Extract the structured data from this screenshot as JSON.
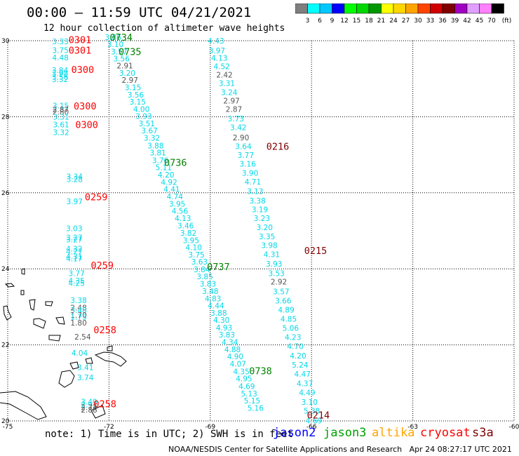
{
  "title": {
    "time_range": "00:00 – 11:59 UTC",
    "date": "04/21/2021"
  },
  "subtitle": "12 hour collection of altimeter wave heights",
  "legend": {
    "unit": "(ft)",
    "labels": [
      "3",
      "6",
      "9",
      "12",
      "15",
      "18",
      "21",
      "24",
      "27",
      "30",
      "33",
      "36",
      "39",
      "42",
      "45",
      "70"
    ],
    "colors": [
      "#7f7f7f",
      "#00ffff",
      "#00c8ff",
      "#0000ff",
      "#00ff00",
      "#00d800",
      "#009800",
      "#ffff00",
      "#ffd700",
      "#ffa500",
      "#ff4500",
      "#d00000",
      "#800000",
      "#a000c0",
      "#e0a0ff",
      "#ff80ff",
      "#000000"
    ]
  },
  "axes": {
    "lat_labels": [
      "30",
      "28",
      "26",
      "24",
      "22",
      "20"
    ],
    "lon_labels": [
      "-75",
      "-72",
      "-69",
      "-66",
      "-63",
      "-60"
    ]
  },
  "satellites": [
    {
      "name": "jason2",
      "color": "#0000ff"
    },
    {
      "name": "jason3",
      "color": "#00a000"
    },
    {
      "name": "altika",
      "color": "#ffa500"
    },
    {
      "name": "cryosat",
      "color": "#ff0000"
    },
    {
      "name": "s3a",
      "color": "#800000"
    }
  ],
  "note": "note: 1) Time is in UTC; 2) SWH is in feet",
  "credit": "NOAA/NESDIS Center for Satellite Applications and Research   Apr 24 08:27:17 UTC 2021",
  "colors": {
    "cyan": "#00d8e8",
    "gray": "#555555",
    "cryosat": "#ff0000",
    "jason3": "#008000",
    "s3a": "#800000"
  },
  "time_labels": [
    {
      "text": "0301",
      "lon": -72.86,
      "lat": 29.94,
      "sat": "cryosat"
    },
    {
      "text": "0301",
      "lon": -72.86,
      "lat": 29.66,
      "sat": "cryosat"
    },
    {
      "text": "0300",
      "lon": -72.78,
      "lat": 29.15,
      "sat": "cryosat"
    },
    {
      "text": "0300",
      "lon": -72.71,
      "lat": 28.19,
      "sat": "cryosat"
    },
    {
      "text": "0300",
      "lon": -72.66,
      "lat": 27.7,
      "sat": "cryosat"
    },
    {
      "text": "0259",
      "lon": -72.38,
      "lat": 25.8,
      "sat": "cryosat"
    },
    {
      "text": "0259",
      "lon": -72.2,
      "lat": 24.0,
      "sat": "cryosat"
    },
    {
      "text": "0258",
      "lon": -72.12,
      "lat": 22.31,
      "sat": "cryosat"
    },
    {
      "text": "0258",
      "lon": -72.12,
      "lat": 20.36,
      "sat": "cryosat"
    },
    {
      "text": "0734",
      "lon": -71.64,
      "lat": 30.0,
      "sat": "jason3"
    },
    {
      "text": "0735",
      "lon": -71.38,
      "lat": 29.62,
      "sat": "jason3"
    },
    {
      "text": "0736",
      "lon": -70.03,
      "lat": 26.71,
      "sat": "jason3"
    },
    {
      "text": "0737",
      "lon": -68.76,
      "lat": 23.97,
      "sat": "jason3"
    },
    {
      "text": "0738",
      "lon": -67.51,
      "lat": 21.23,
      "sat": "jason3"
    },
    {
      "text": "0216",
      "lon": -67.0,
      "lat": 27.13,
      "sat": "s3a"
    },
    {
      "text": "0215",
      "lon": -65.88,
      "lat": 24.39,
      "sat": "s3a"
    },
    {
      "text": "0214",
      "lon": -65.8,
      "lat": 20.06,
      "sat": "s3a"
    }
  ],
  "observations": [
    {
      "v": "3.33",
      "lon": -73.44,
      "lat": 29.91,
      "c": "cyan"
    },
    {
      "v": "3.75",
      "lon": -73.44,
      "lat": 29.68,
      "c": "cyan"
    },
    {
      "v": "4.48",
      "lon": -73.44,
      "lat": 29.48,
      "c": "cyan"
    },
    {
      "v": "3.84",
      "lon": -73.45,
      "lat": 29.15,
      "c": "cyan"
    },
    {
      "v": "3.98",
      "lon": -73.45,
      "lat": 29.07,
      "c": "cyan"
    },
    {
      "v": "3.56",
      "lon": -73.45,
      "lat": 28.98,
      "c": "cyan"
    },
    {
      "v": "3.32",
      "lon": -73.45,
      "lat": 28.91,
      "c": "cyan"
    },
    {
      "v": "3.15",
      "lon": -73.43,
      "lat": 28.22,
      "c": "cyan"
    },
    {
      "v": "2.87",
      "lon": -73.43,
      "lat": 28.12,
      "c": "gray"
    },
    {
      "v": "2.80",
      "lon": -73.43,
      "lat": 28.05,
      "c": "gray"
    },
    {
      "v": "3.31",
      "lon": -73.42,
      "lat": 27.92,
      "c": "cyan"
    },
    {
      "v": "3.61",
      "lon": -73.42,
      "lat": 27.72,
      "c": "cyan"
    },
    {
      "v": "3.32",
      "lon": -73.42,
      "lat": 27.52,
      "c": "cyan"
    },
    {
      "v": "3.34",
      "lon": -73.02,
      "lat": 26.36,
      "c": "cyan"
    },
    {
      "v": "3.28",
      "lon": -73.02,
      "lat": 26.28,
      "c": "cyan"
    },
    {
      "v": "3.97",
      "lon": -73.02,
      "lat": 25.7,
      "c": "cyan"
    },
    {
      "v": "3.03",
      "lon": -73.03,
      "lat": 24.99,
      "c": "cyan"
    },
    {
      "v": "3.27",
      "lon": -73.03,
      "lat": 24.75,
      "c": "cyan"
    },
    {
      "v": "3.27",
      "lon": -73.03,
      "lat": 24.7,
      "c": "cyan"
    },
    {
      "v": "4.32",
      "lon": -73.03,
      "lat": 24.46,
      "c": "cyan"
    },
    {
      "v": "4.27",
      "lon": -73.03,
      "lat": 24.38,
      "c": "cyan"
    },
    {
      "v": "4.31",
      "lon": -73.03,
      "lat": 24.25,
      "c": "cyan"
    },
    {
      "v": "4.17",
      "lon": -73.03,
      "lat": 24.2,
      "c": "cyan"
    },
    {
      "v": "3.77",
      "lon": -72.96,
      "lat": 23.81,
      "c": "cyan"
    },
    {
      "v": "4.35",
      "lon": -72.96,
      "lat": 23.62,
      "c": "cyan"
    },
    {
      "v": "4.25",
      "lon": -72.96,
      "lat": 23.55,
      "c": "cyan"
    },
    {
      "v": "3.38",
      "lon": -72.9,
      "lat": 23.1,
      "c": "cyan"
    },
    {
      "v": "2.48",
      "lon": -72.9,
      "lat": 22.91,
      "c": "gray"
    },
    {
      "v": "3.48",
      "lon": -72.9,
      "lat": 22.84,
      "c": "cyan"
    },
    {
      "v": "1.70",
      "lon": -72.9,
      "lat": 22.71,
      "c": "gray"
    },
    {
      "v": "1.75",
      "lon": -72.9,
      "lat": 22.67,
      "c": "cyan"
    },
    {
      "v": "1.80",
      "lon": -72.9,
      "lat": 22.51,
      "c": "gray"
    },
    {
      "v": "2.54",
      "lon": -72.78,
      "lat": 22.14,
      "c": "gray"
    },
    {
      "v": "4.04",
      "lon": -72.87,
      "lat": 21.72,
      "c": "cyan"
    },
    {
      "v": "3.41",
      "lon": -72.7,
      "lat": 21.34,
      "c": "cyan"
    },
    {
      "v": "3.74",
      "lon": -72.7,
      "lat": 21.07,
      "c": "cyan"
    },
    {
      "v": "3.49",
      "lon": -72.59,
      "lat": 20.43,
      "c": "cyan"
    },
    {
      "v": "2.92",
      "lon": -72.59,
      "lat": 20.35,
      "c": "cyan"
    },
    {
      "v": "2.72",
      "lon": -72.59,
      "lat": 20.29,
      "c": "gray"
    },
    {
      "v": "2.88",
      "lon": -72.59,
      "lat": 20.22,
      "c": "gray"
    },
    {
      "v": "3.86",
      "lon": -71.88,
      "lat": 30.02,
      "c": "cyan"
    },
    {
      "v": "3.10",
      "lon": -71.81,
      "lat": 29.83,
      "c": "cyan"
    },
    {
      "v": "3.57",
      "lon": -71.7,
      "lat": 29.64,
      "c": "cyan"
    },
    {
      "v": "3.56",
      "lon": -71.63,
      "lat": 29.46,
      "c": "cyan"
    },
    {
      "v": "2.91",
      "lon": -71.53,
      "lat": 29.27,
      "c": "gray"
    },
    {
      "v": "3.20",
      "lon": -71.46,
      "lat": 29.08,
      "c": "cyan"
    },
    {
      "v": "2.97",
      "lon": -71.38,
      "lat": 28.89,
      "c": "gray"
    },
    {
      "v": "3.15",
      "lon": -71.29,
      "lat": 28.7,
      "c": "cyan"
    },
    {
      "v": "3.56",
      "lon": -71.21,
      "lat": 28.51,
      "c": "cyan"
    },
    {
      "v": "3.15",
      "lon": -71.15,
      "lat": 28.32,
      "c": "cyan"
    },
    {
      "v": "4.00",
      "lon": -71.04,
      "lat": 28.13,
      "c": "cyan"
    },
    {
      "v": "3.93",
      "lon": -70.97,
      "lat": 27.94,
      "c": "cyan"
    },
    {
      "v": "3.51",
      "lon": -70.88,
      "lat": 27.75,
      "c": "cyan"
    },
    {
      "v": "3.67",
      "lon": -70.8,
      "lat": 27.56,
      "c": "cyan"
    },
    {
      "v": "3.32",
      "lon": -70.73,
      "lat": 27.37,
      "c": "cyan"
    },
    {
      "v": "3.88",
      "lon": -70.62,
      "lat": 27.17,
      "c": "cyan"
    },
    {
      "v": "3.81",
      "lon": -70.55,
      "lat": 26.98,
      "c": "cyan"
    },
    {
      "v": "3.76",
      "lon": -70.48,
      "lat": 26.78,
      "c": "cyan"
    },
    {
      "v": "5.11",
      "lon": -70.38,
      "lat": 26.6,
      "c": "cyan"
    },
    {
      "v": "4.20",
      "lon": -70.31,
      "lat": 26.4,
      "c": "cyan"
    },
    {
      "v": "4.92",
      "lon": -70.22,
      "lat": 26.21,
      "c": "cyan"
    },
    {
      "v": "4.41",
      "lon": -70.14,
      "lat": 26.02,
      "c": "cyan"
    },
    {
      "v": "4.74",
      "lon": -70.05,
      "lat": 25.83,
      "c": "cyan"
    },
    {
      "v": "3.95",
      "lon": -69.98,
      "lat": 25.64,
      "c": "cyan"
    },
    {
      "v": "4.56",
      "lon": -69.9,
      "lat": 25.45,
      "c": "cyan"
    },
    {
      "v": "4.13",
      "lon": -69.81,
      "lat": 25.26,
      "c": "cyan"
    },
    {
      "v": "3.46",
      "lon": -69.73,
      "lat": 25.06,
      "c": "cyan"
    },
    {
      "v": "3.82",
      "lon": -69.65,
      "lat": 24.87,
      "c": "cyan"
    },
    {
      "v": "3.95",
      "lon": -69.57,
      "lat": 24.68,
      "c": "cyan"
    },
    {
      "v": "4.10",
      "lon": -69.49,
      "lat": 24.49,
      "c": "cyan"
    },
    {
      "v": "3.75",
      "lon": -69.41,
      "lat": 24.3,
      "c": "cyan"
    },
    {
      "v": "3.63",
      "lon": -69.32,
      "lat": 24.11,
      "c": "cyan"
    },
    {
      "v": "3.84",
      "lon": -69.25,
      "lat": 23.91,
      "c": "cyan"
    },
    {
      "v": "3.85",
      "lon": -69.16,
      "lat": 23.73,
      "c": "cyan"
    },
    {
      "v": "3.83",
      "lon": -69.07,
      "lat": 23.53,
      "c": "cyan"
    },
    {
      "v": "3.48",
      "lon": -69.0,
      "lat": 23.34,
      "c": "cyan"
    },
    {
      "v": "4.83",
      "lon": -68.92,
      "lat": 23.15,
      "c": "cyan"
    },
    {
      "v": "4.44",
      "lon": -68.83,
      "lat": 22.96,
      "c": "cyan"
    },
    {
      "v": "3.88",
      "lon": -68.75,
      "lat": 22.77,
      "c": "cyan"
    },
    {
      "v": "4.30",
      "lon": -68.67,
      "lat": 22.58,
      "c": "cyan"
    },
    {
      "v": "4.93",
      "lon": -68.59,
      "lat": 22.38,
      "c": "cyan"
    },
    {
      "v": "3.83",
      "lon": -68.51,
      "lat": 22.2,
      "c": "cyan"
    },
    {
      "v": "4.34",
      "lon": -68.42,
      "lat": 22.0,
      "c": "cyan"
    },
    {
      "v": "4.88",
      "lon": -68.34,
      "lat": 21.81,
      "c": "cyan"
    },
    {
      "v": "4.90",
      "lon": -68.26,
      "lat": 21.62,
      "c": "cyan"
    },
    {
      "v": "4.07",
      "lon": -68.18,
      "lat": 21.43,
      "c": "cyan"
    },
    {
      "v": "4.35",
      "lon": -68.08,
      "lat": 21.23,
      "c": "cyan"
    },
    {
      "v": "4.95",
      "lon": -68.0,
      "lat": 21.04,
      "c": "cyan"
    },
    {
      "v": "4.69",
      "lon": -67.92,
      "lat": 20.84,
      "c": "cyan"
    },
    {
      "v": "5.13",
      "lon": -67.85,
      "lat": 20.65,
      "c": "cyan"
    },
    {
      "v": "5.15",
      "lon": -67.76,
      "lat": 20.46,
      "c": "cyan"
    },
    {
      "v": "5.16",
      "lon": -67.66,
      "lat": 20.27,
      "c": "cyan"
    },
    {
      "v": "4.43",
      "lon": -68.83,
      "lat": 29.93,
      "c": "cyan"
    },
    {
      "v": "3.97",
      "lon": -68.8,
      "lat": 29.67,
      "c": "cyan"
    },
    {
      "v": "4.13",
      "lon": -68.73,
      "lat": 29.47,
      "c": "cyan"
    },
    {
      "v": "4.52",
      "lon": -68.66,
      "lat": 29.25,
      "c": "cyan"
    },
    {
      "v": "2.42",
      "lon": -68.58,
      "lat": 29.03,
      "c": "gray"
    },
    {
      "v": "3.31",
      "lon": -68.51,
      "lat": 28.81,
      "c": "cyan"
    },
    {
      "v": "3.24",
      "lon": -68.44,
      "lat": 28.57,
      "c": "cyan"
    },
    {
      "v": "2.97",
      "lon": -68.37,
      "lat": 28.35,
      "c": "gray"
    },
    {
      "v": "2.87",
      "lon": -68.3,
      "lat": 28.13,
      "c": "gray"
    },
    {
      "v": "3.73",
      "lon": -68.24,
      "lat": 27.88,
      "c": "cyan"
    },
    {
      "v": "3.42",
      "lon": -68.17,
      "lat": 27.65,
      "c": "cyan"
    },
    {
      "v": "2.90",
      "lon": -68.09,
      "lat": 27.38,
      "c": "gray"
    },
    {
      "v": "3.64",
      "lon": -68.02,
      "lat": 27.15,
      "c": "cyan"
    },
    {
      "v": "3.77",
      "lon": -67.95,
      "lat": 26.92,
      "c": "cyan"
    },
    {
      "v": "3.16",
      "lon": -67.89,
      "lat": 26.69,
      "c": "cyan"
    },
    {
      "v": "3.90",
      "lon": -67.82,
      "lat": 26.45,
      "c": "cyan"
    },
    {
      "v": "4.71",
      "lon": -67.74,
      "lat": 26.22,
      "c": "cyan"
    },
    {
      "v": "3.13",
      "lon": -67.67,
      "lat": 25.97,
      "c": "cyan"
    },
    {
      "v": "3.38",
      "lon": -67.6,
      "lat": 25.72,
      "c": "cyan"
    },
    {
      "v": "3.19",
      "lon": -67.53,
      "lat": 25.49,
      "c": "cyan"
    },
    {
      "v": "3.23",
      "lon": -67.47,
      "lat": 25.26,
      "c": "cyan"
    },
    {
      "v": "3.20",
      "lon": -67.39,
      "lat": 25.02,
      "c": "cyan"
    },
    {
      "v": "3.35",
      "lon": -67.32,
      "lat": 24.78,
      "c": "cyan"
    },
    {
      "v": "3.98",
      "lon": -67.25,
      "lat": 24.55,
      "c": "cyan"
    },
    {
      "v": "4.31",
      "lon": -67.18,
      "lat": 24.31,
      "c": "cyan"
    },
    {
      "v": "3.93",
      "lon": -67.11,
      "lat": 24.06,
      "c": "cyan"
    },
    {
      "v": "3.53",
      "lon": -67.04,
      "lat": 23.81,
      "c": "cyan"
    },
    {
      "v": "2.92",
      "lon": -66.97,
      "lat": 23.59,
      "c": "gray"
    },
    {
      "v": "3.57",
      "lon": -66.9,
      "lat": 23.33,
      "c": "cyan"
    },
    {
      "v": "3.66",
      "lon": -66.84,
      "lat": 23.09,
      "c": "cyan"
    },
    {
      "v": "4.89",
      "lon": -66.75,
      "lat": 22.85,
      "c": "cyan"
    },
    {
      "v": "4.85",
      "lon": -66.68,
      "lat": 22.61,
      "c": "cyan"
    },
    {
      "v": "5.06",
      "lon": -66.62,
      "lat": 22.37,
      "c": "cyan"
    },
    {
      "v": "4.23",
      "lon": -66.55,
      "lat": 22.13,
      "c": "cyan"
    },
    {
      "v": "4.70",
      "lon": -66.48,
      "lat": 21.89,
      "c": "cyan"
    },
    {
      "v": "4.20",
      "lon": -66.4,
      "lat": 21.64,
      "c": "cyan"
    },
    {
      "v": "5.24",
      "lon": -66.34,
      "lat": 21.4,
      "c": "cyan"
    },
    {
      "v": "4.47",
      "lon": -66.27,
      "lat": 21.16,
      "c": "cyan"
    },
    {
      "v": "4.37",
      "lon": -66.2,
      "lat": 20.91,
      "c": "cyan"
    },
    {
      "v": "4.49",
      "lon": -66.13,
      "lat": 20.67,
      "c": "cyan"
    },
    {
      "v": "3.10",
      "lon": -66.06,
      "lat": 20.42,
      "c": "cyan"
    },
    {
      "v": "5.38",
      "lon": -65.99,
      "lat": 20.19,
      "c": "cyan"
    },
    {
      "v": "4.69",
      "lon": -65.93,
      "lat": 19.94,
      "c": "cyan"
    }
  ]
}
